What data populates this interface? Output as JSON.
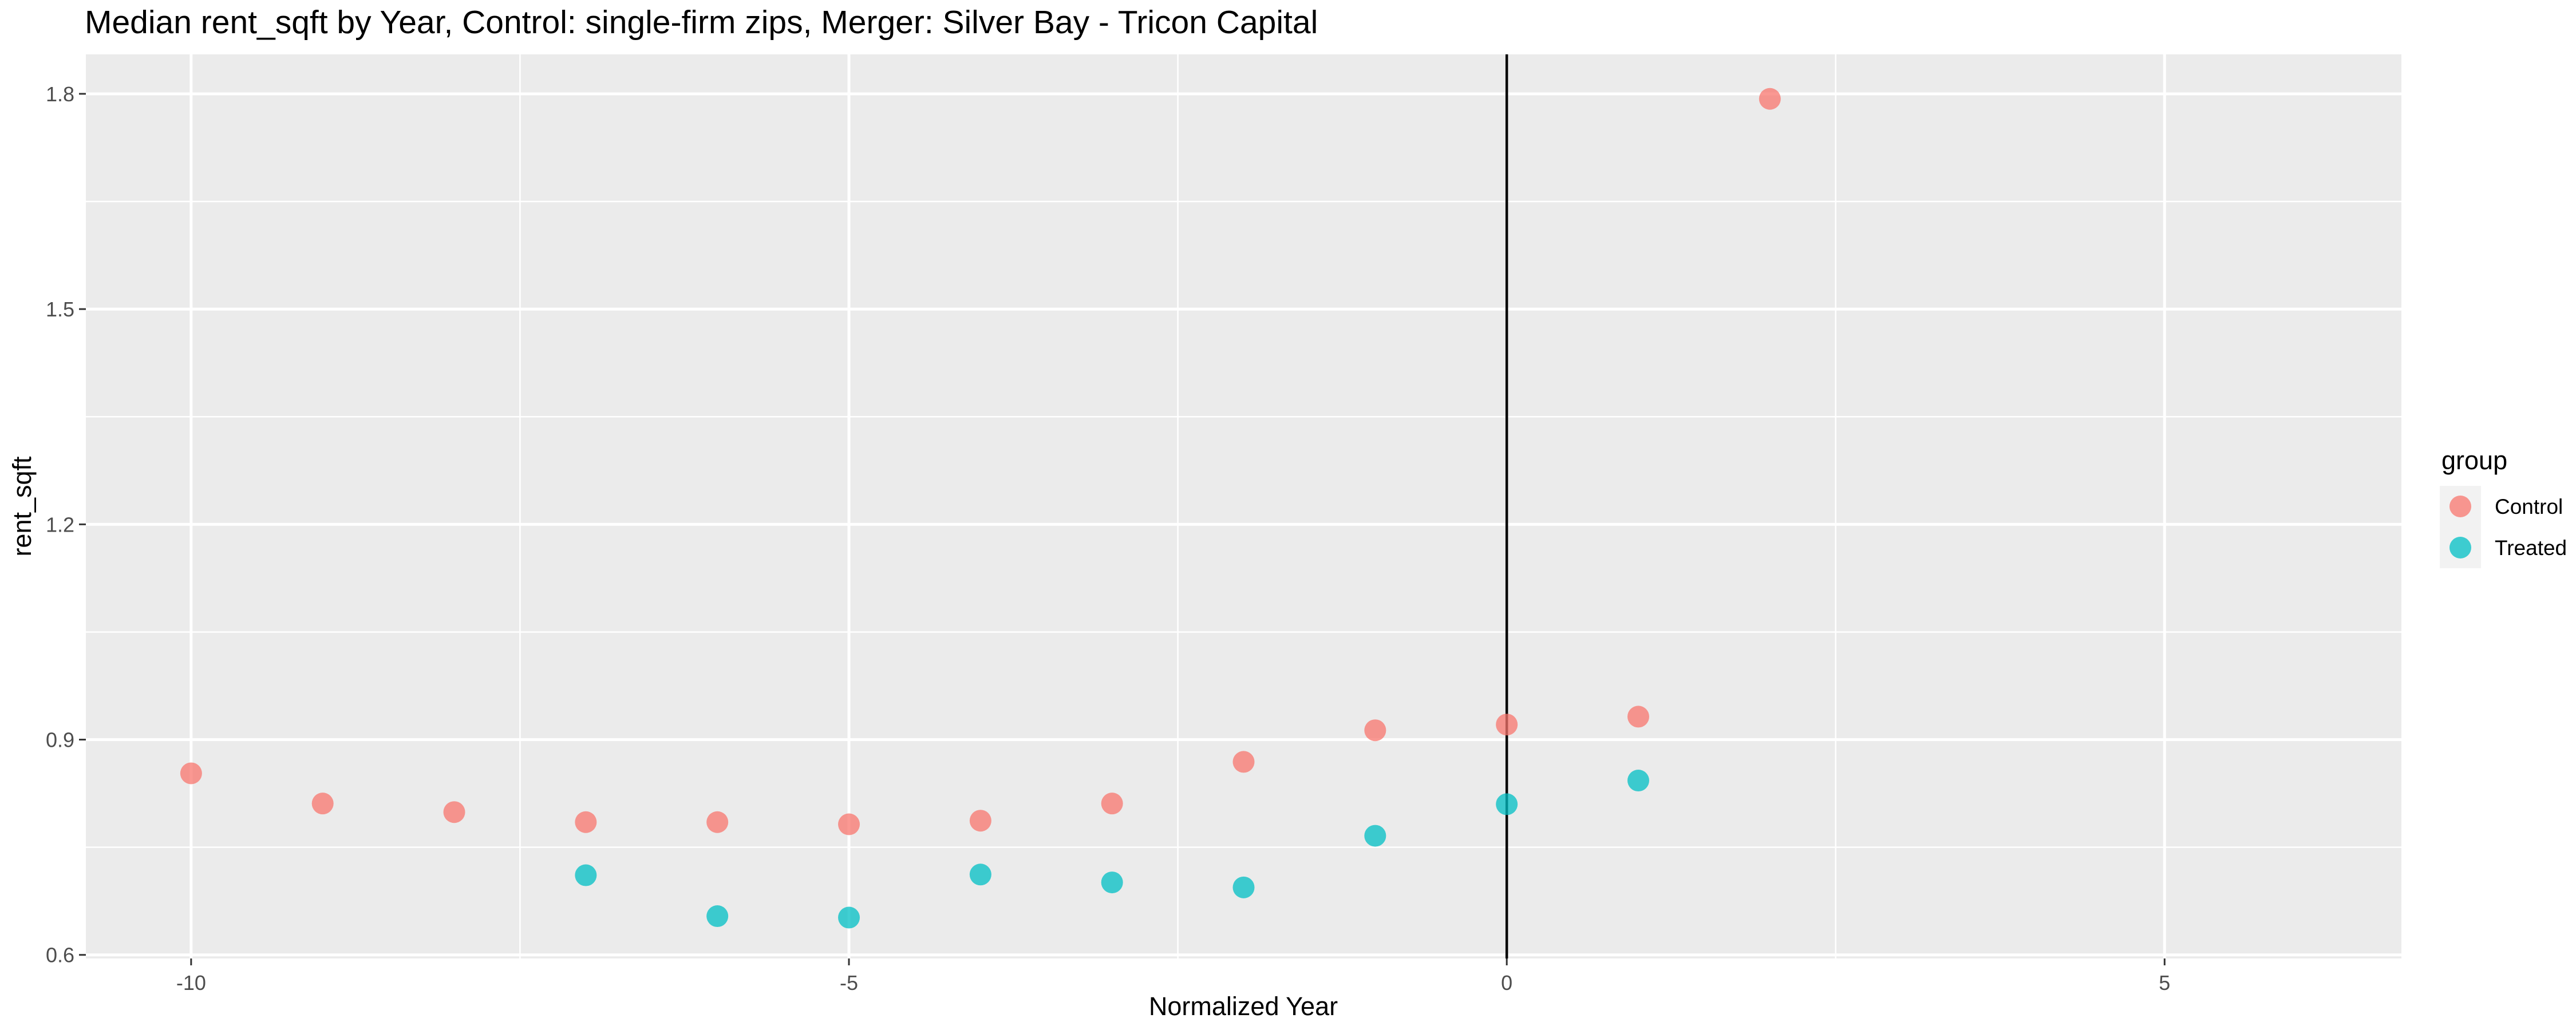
{
  "chart_data": {
    "type": "scatter",
    "title": "Median rent_sqft by Year, Control: single-firm zips, Merger: Silver Bay - Tricon Capital",
    "xlabel": "Normalized Year",
    "ylabel": "rent_sqft",
    "xlim": [
      -10.8,
      6.8
    ],
    "ylim": [
      0.595,
      1.855
    ],
    "x_ticks": [
      -10,
      -5,
      0,
      5
    ],
    "x_tick_labels": [
      "-10",
      "-5",
      "0",
      "5"
    ],
    "y_ticks": [
      0.6,
      0.9,
      1.2,
      1.5,
      1.8
    ],
    "y_tick_labels": [
      "0.6",
      "0.9",
      "1.2",
      "1.5",
      "1.8"
    ],
    "grid": true,
    "vline_x": 0,
    "legend": {
      "title": "group",
      "position": "right"
    },
    "series": [
      {
        "name": "Control",
        "color": "#F8766D",
        "points": [
          {
            "x": -10,
            "y": 0.853
          },
          {
            "x": -9,
            "y": 0.811
          },
          {
            "x": -8,
            "y": 0.799
          },
          {
            "x": -7,
            "y": 0.785
          },
          {
            "x": -6,
            "y": 0.785
          },
          {
            "x": -5,
            "y": 0.782
          },
          {
            "x": -4,
            "y": 0.787
          },
          {
            "x": -3,
            "y": 0.811
          },
          {
            "x": -2,
            "y": 0.869
          },
          {
            "x": -1,
            "y": 0.913
          },
          {
            "x": 0,
            "y": 0.921
          },
          {
            "x": 1,
            "y": 0.932
          },
          {
            "x": 2,
            "y": 1.793
          }
        ]
      },
      {
        "name": "Treated",
        "color": "#00BFC4",
        "points": [
          {
            "x": -7,
            "y": 0.711
          },
          {
            "x": -6,
            "y": 0.654
          },
          {
            "x": -5,
            "y": 0.652
          },
          {
            "x": -4,
            "y": 0.712
          },
          {
            "x": -3,
            "y": 0.701
          },
          {
            "x": -2,
            "y": 0.694
          },
          {
            "x": -1,
            "y": 0.766
          },
          {
            "x": 0,
            "y": 0.81
          },
          {
            "x": 1,
            "y": 0.843
          }
        ]
      }
    ]
  }
}
